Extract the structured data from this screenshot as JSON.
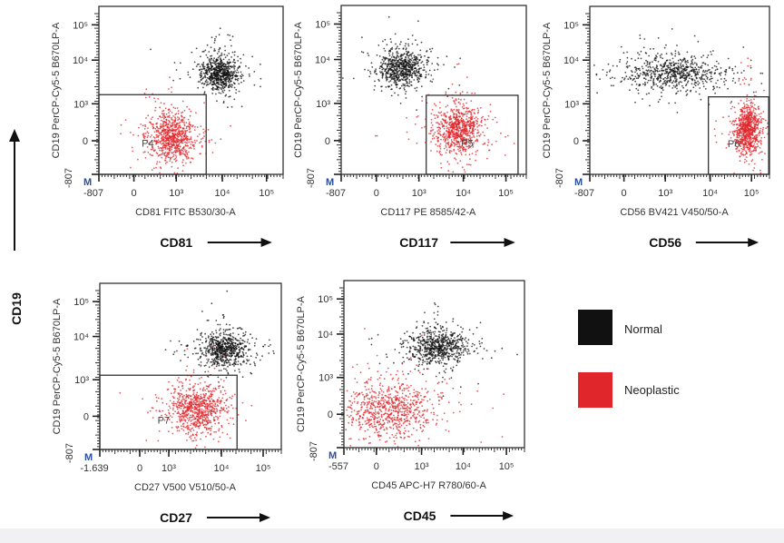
{
  "colors": {
    "normal": "#111111",
    "neoplastic": "#e0262b",
    "axis_marker": "#2a4fa0"
  },
  "common_y_label": "CD19",
  "legend": [
    {
      "label": "Normal",
      "color": "#111111"
    },
    {
      "label": "Neoplastic",
      "color": "#e0262b"
    }
  ],
  "chart_data": [
    {
      "type": "scatter",
      "xlabel": "CD81 FITC B530/30-A",
      "ylabel": "CD19 PerCP-Cy5-5 B670LP-A",
      "marker_label": "CD81",
      "axis_marker": "M",
      "x_ticks": [
        "-807",
        "0",
        "10³",
        "10⁴",
        "10⁵"
      ],
      "x_tick_values": [
        -807,
        0,
        1000,
        10000,
        100000
      ],
      "y_ticks": [
        "-807",
        "0",
        "10³",
        "10⁴",
        "10⁵"
      ],
      "y_tick_values": [
        -807,
        0,
        1000,
        10000,
        100000
      ],
      "gate": {
        "label": "P4",
        "x": [
          -807,
          4600
        ],
        "y": [
          -807,
          1700
        ]
      },
      "clusters": [
        {
          "series": "Normal",
          "center_x": 9000,
          "center_y": 6000
        },
        {
          "series": "Neoplastic",
          "center_x": 900,
          "center_y": 100
        }
      ]
    },
    {
      "type": "scatter",
      "xlabel": "CD117 PE 8585/42-A",
      "ylabel": "CD19 PerCP-Cy5-5 B670LP-A",
      "marker_label": "CD117",
      "axis_marker": "M",
      "x_ticks": [
        "-807",
        "0",
        "10³",
        "10⁴",
        "10⁵"
      ],
      "x_tick_values": [
        -807,
        0,
        1000,
        10000,
        100000
      ],
      "y_ticks": [
        "-807",
        "0",
        "10³",
        "10⁴",
        "10⁵"
      ],
      "y_tick_values": [
        -807,
        0,
        1000,
        10000,
        100000
      ],
      "gate": {
        "label": "P5",
        "x": [
          1470,
          190000
        ],
        "y": [
          -807,
          1600
        ]
      },
      "clusters": [
        {
          "series": "Normal",
          "center_x": 600,
          "center_y": 8000
        },
        {
          "series": "Neoplastic",
          "center_x": 8000,
          "center_y": 300
        }
      ]
    },
    {
      "type": "scatter",
      "xlabel": "CD56 BV421 V450/50-A",
      "ylabel": "CD19 PerCP-Cy5-5 B670LP-A",
      "marker_label": "CD56",
      "axis_marker": "M",
      "x_ticks": [
        "-807",
        "0",
        "10³",
        "10⁴",
        "10⁵"
      ],
      "x_tick_values": [
        -807,
        0,
        1000,
        10000,
        100000
      ],
      "y_ticks": [
        "-807",
        "0",
        "10³",
        "10⁴",
        "10⁵"
      ],
      "y_tick_values": [
        -807,
        0,
        1000,
        10000,
        100000
      ],
      "gate": {
        "label": "P6",
        "x": [
          10000,
          250000
        ],
        "y": [
          -807,
          1500
        ]
      },
      "clusters": [
        {
          "series": "Normal",
          "center_x": 1500,
          "center_y": 6000
        },
        {
          "series": "Neoplastic",
          "center_x": 80000,
          "center_y": 300
        }
      ]
    },
    {
      "type": "scatter",
      "xlabel": "CD27 V500 V510/50-A",
      "ylabel": "CD19 PerCP-Cy5-5 B670LP-A",
      "marker_label": "CD27",
      "axis_marker": "M",
      "x_ticks": [
        "-1.639",
        "0",
        "10³",
        "10⁴",
        "10⁵"
      ],
      "x_tick_values": [
        -1639,
        0,
        1000,
        10000,
        100000
      ],
      "y_ticks": [
        "-807",
        "0",
        "10³",
        "10⁴",
        "10⁵"
      ],
      "y_tick_values": [
        -807,
        0,
        1000,
        10000,
        100000
      ],
      "gate": {
        "label": "P7",
        "x": [
          -1639,
          28000
        ],
        "y": [
          -807,
          1300
        ]
      },
      "clusters": [
        {
          "series": "Normal",
          "center_x": 15000,
          "center_y": 6000
        },
        {
          "series": "Neoplastic",
          "center_x": 4000,
          "center_y": 200
        }
      ]
    },
    {
      "type": "scatter",
      "xlabel": "CD45 APC-H7 R780/60-A",
      "ylabel": "CD19 PerCP-Cy5-5 B670LP-A",
      "marker_label": "CD45",
      "axis_marker": "M",
      "x_ticks": [
        "-557",
        "0",
        "10³",
        "10⁴",
        "10⁵"
      ],
      "x_tick_values": [
        -557,
        0,
        1000,
        10000,
        100000
      ],
      "y_ticks": [
        "-807",
        "0",
        "10³",
        "10⁴",
        "10⁵"
      ],
      "y_tick_values": [
        -807,
        0,
        1000,
        10000,
        100000
      ],
      "gate": null,
      "clusters": [
        {
          "series": "Normal",
          "center_x": 2500,
          "center_y": 6000
        },
        {
          "series": "Neoplastic",
          "center_x": 300,
          "center_y": 150
        }
      ]
    }
  ]
}
